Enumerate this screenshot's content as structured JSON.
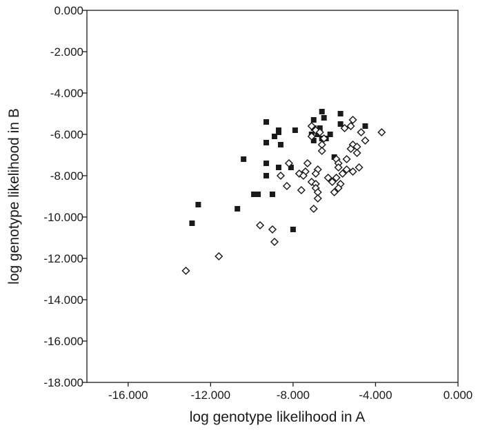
{
  "chart_data": {
    "type": "scatter",
    "title": "",
    "xlabel": "log genotype likelihood in A",
    "ylabel": "log genotype likelihood in B",
    "xlim": [
      -18,
      0
    ],
    "ylim": [
      -18,
      0
    ],
    "x_ticks": [
      -16,
      -12,
      -8,
      -4,
      0
    ],
    "x_tick_labels": [
      "-16.000",
      "-12.000",
      "-8.000",
      "-4.000",
      "0.000"
    ],
    "y_ticks": [
      0,
      -2,
      -4,
      -6,
      -8,
      -10,
      -12,
      -14,
      -16,
      -18
    ],
    "y_tick_labels": [
      "0.000",
      "-2.000",
      "-4.000",
      "-6.000",
      "-8.000",
      "-10.000",
      "-12.000",
      "-14.000",
      "-16.000",
      "-18.000"
    ],
    "grid": false,
    "legend": "none",
    "series": [
      {
        "marker": "filled-square",
        "color": "#1a1a1a",
        "points": [
          [
            -6.6,
            -4.9
          ],
          [
            -5.7,
            -5.0
          ],
          [
            -6.5,
            -5.2
          ],
          [
            -9.3,
            -5.4
          ],
          [
            -7.0,
            -5.3
          ],
          [
            -7.0,
            -5.7
          ],
          [
            -6.7,
            -5.7
          ],
          [
            -8.7,
            -5.8
          ],
          [
            -7.9,
            -5.8
          ],
          [
            -8.7,
            -5.9
          ],
          [
            -6.2,
            -6.0
          ],
          [
            -6.8,
            -6.0
          ],
          [
            -5.7,
            -5.5
          ],
          [
            -4.5,
            -5.6
          ],
          [
            -6.6,
            -6.2
          ],
          [
            -6.4,
            -6.2
          ],
          [
            -7.1,
            -6.0
          ],
          [
            -8.9,
            -6.1
          ],
          [
            -7.0,
            -6.3
          ],
          [
            -9.3,
            -6.4
          ],
          [
            -8.6,
            -6.5
          ],
          [
            -6.0,
            -7.1
          ],
          [
            -10.4,
            -7.2
          ],
          [
            -9.3,
            -7.4
          ],
          [
            -8.7,
            -7.6
          ],
          [
            -8.1,
            -7.6
          ],
          [
            -9.3,
            -8.0
          ],
          [
            -9.9,
            -8.9
          ],
          [
            -9.7,
            -8.9
          ],
          [
            -9.0,
            -8.9
          ],
          [
            -10.7,
            -9.6
          ],
          [
            -12.6,
            -9.4
          ],
          [
            -12.9,
            -10.3
          ],
          [
            -8.0,
            -10.6
          ]
        ]
      },
      {
        "marker": "open-diamond",
        "color": "#1a1a1a",
        "points": [
          [
            -5.1,
            -5.3
          ],
          [
            -5.2,
            -5.6
          ],
          [
            -5.5,
            -5.7
          ],
          [
            -7.1,
            -5.6
          ],
          [
            -6.9,
            -5.8
          ],
          [
            -6.7,
            -5.9
          ],
          [
            -3.7,
            -5.9
          ],
          [
            -4.7,
            -5.9
          ],
          [
            -7.1,
            -6.1
          ],
          [
            -6.5,
            -6.2
          ],
          [
            -4.5,
            -6.3
          ],
          [
            -6.6,
            -6.5
          ],
          [
            -5.1,
            -6.5
          ],
          [
            -4.9,
            -6.6
          ],
          [
            -5.2,
            -6.7
          ],
          [
            -6.6,
            -6.8
          ],
          [
            -4.9,
            -6.9
          ],
          [
            -5.9,
            -7.2
          ],
          [
            -5.4,
            -7.2
          ],
          [
            -5.8,
            -7.4
          ],
          [
            -7.3,
            -7.4
          ],
          [
            -8.2,
            -7.4
          ],
          [
            -5.8,
            -7.6
          ],
          [
            -4.8,
            -7.6
          ],
          [
            -5.4,
            -7.7
          ],
          [
            -6.8,
            -7.7
          ],
          [
            -6.9,
            -7.9
          ],
          [
            -7.4,
            -7.8
          ],
          [
            -7.7,
            -7.9
          ],
          [
            -5.1,
            -7.8
          ],
          [
            -5.6,
            -7.9
          ],
          [
            -7.5,
            -8.0
          ],
          [
            -8.6,
            -8.0
          ],
          [
            -6.3,
            -8.1
          ],
          [
            -5.9,
            -8.1
          ],
          [
            -7.1,
            -8.3
          ],
          [
            -6.9,
            -8.4
          ],
          [
            -6.1,
            -8.3
          ],
          [
            -5.7,
            -8.4
          ],
          [
            -8.3,
            -8.5
          ],
          [
            -6.9,
            -8.6
          ],
          [
            -5.8,
            -8.6
          ],
          [
            -7.6,
            -8.7
          ],
          [
            -6.0,
            -8.8
          ],
          [
            -6.8,
            -8.8
          ],
          [
            -6.8,
            -9.1
          ],
          [
            -7.0,
            -9.6
          ],
          [
            -9.6,
            -10.4
          ],
          [
            -9.0,
            -10.6
          ],
          [
            -8.9,
            -11.2
          ],
          [
            -11.6,
            -11.9
          ],
          [
            -13.2,
            -12.6
          ]
        ]
      }
    ]
  }
}
